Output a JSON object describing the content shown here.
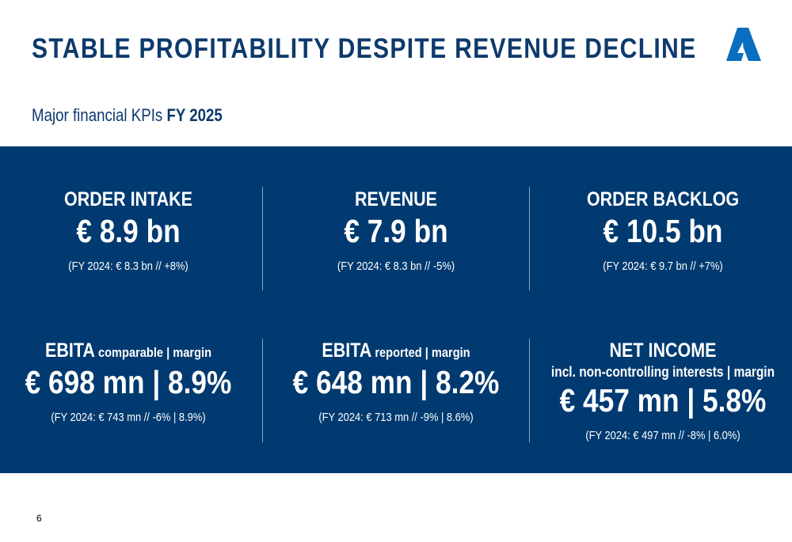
{
  "title": "STABLE PROFITABILITY DESPITE REVENUE DECLINE",
  "subtitle": {
    "text": "Major financial KPIs ",
    "bold": "FY 2025"
  },
  "colors": {
    "title": "#0d3a6c",
    "panel": "#003a70",
    "logo": "#0a6ec0"
  },
  "logo_icon": "triangle-a-logo",
  "kpis": [
    {
      "label": "ORDER INTAKE",
      "label_suffix": "",
      "sub": "",
      "value": "€ 8.9 bn",
      "previous": "(FY 2024: € 8.3 bn // +8%)"
    },
    {
      "label": "REVENUE",
      "label_suffix": "",
      "sub": "",
      "value": "€ 7.9 bn",
      "previous": "(FY 2024: € 8.3 bn // -5%)"
    },
    {
      "label": "ORDER BACKLOG",
      "label_suffix": "",
      "sub": "",
      "value": "€ 10.5 bn",
      "previous": "(FY 2024: € 9.7 bn // +7%)"
    },
    {
      "label": "EBITA",
      "label_suffix": " comparable | margin",
      "sub": "",
      "value": "€ 698 mn | 8.9%",
      "previous": "(FY 2024: € 743 mn // -6% | 8.9%)"
    },
    {
      "label": "EBITA",
      "label_suffix": " reported | margin",
      "sub": "",
      "value": "€ 648 mn | 8.2%",
      "previous": "(FY 2024: € 713 mn // -9% | 8.6%)"
    },
    {
      "label": "NET INCOME",
      "label_suffix": "",
      "sub": "incl. non-controlling interests | margin",
      "value": "€ 457 mn | 5.8%",
      "previous": "(FY 2024: € 497 mn // -8% | 6.0%)"
    }
  ],
  "page_number": "6"
}
